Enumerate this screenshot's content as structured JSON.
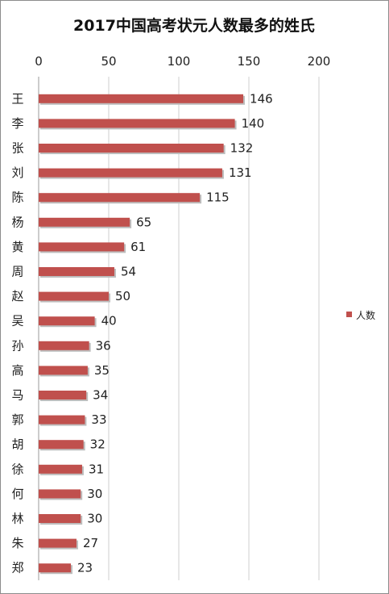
{
  "chart_data": {
    "type": "bar",
    "orientation": "horizontal",
    "title": "2017中国高考状元人数最多的姓氏",
    "xlabel": "",
    "ylabel": "",
    "xlim": [
      0,
      200
    ],
    "x_ticks": [
      "0",
      "50",
      "100",
      "150",
      "200"
    ],
    "grid": true,
    "legend_position": "right",
    "categories": [
      "王",
      "李",
      "张",
      "刘",
      "陈",
      "杨",
      "黄",
      "周",
      "赵",
      "吴",
      "孙",
      "高",
      "马",
      "郭",
      "胡",
      "徐",
      "何",
      "林",
      "朱",
      "郑"
    ],
    "series": [
      {
        "name": "人数",
        "color": "#c0504d",
        "values": [
          146,
          140,
          132,
          131,
          115,
          65,
          61,
          54,
          50,
          40,
          36,
          35,
          34,
          33,
          32,
          31,
          30,
          30,
          27,
          23
        ]
      }
    ]
  }
}
